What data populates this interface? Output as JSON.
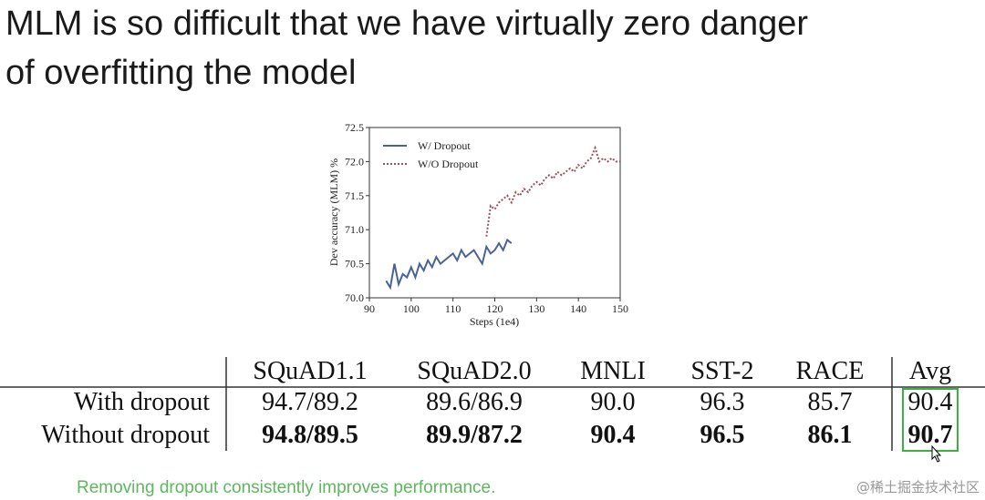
{
  "title": [
    "MLM is so difficult that we have virtually zero danger",
    "of overfitting the model"
  ],
  "chart_data": {
    "type": "line",
    "xlabel": "Steps (1e4)",
    "ylabel": "Dev accuracy (MLM) %",
    "xlim": [
      90,
      150
    ],
    "xticks": [
      90,
      100,
      110,
      120,
      130,
      140,
      150
    ],
    "ylim": [
      70,
      72.5
    ],
    "yticks": [
      {
        "value": 70,
        "label": "70.0"
      },
      70.5,
      {
        "value": 71,
        "label": "71.0"
      },
      71.5,
      {
        "value": 72,
        "label": "72.0"
      },
      72.5
    ],
    "legend": "upper left",
    "series": [
      {
        "name": "W/ Dropout",
        "color": "#4a6397",
        "style": "solid",
        "x": [
          94,
          95,
          96,
          97,
          98,
          99,
          100,
          101,
          102,
          103,
          104,
          105,
          106,
          107,
          108,
          109,
          110,
          111,
          112,
          113,
          114,
          115,
          116,
          117,
          118,
          119,
          120,
          121,
          122,
          123,
          124
        ],
        "values": [
          70.25,
          70.15,
          70.5,
          70.2,
          70.35,
          70.3,
          70.45,
          70.3,
          70.5,
          70.4,
          70.55,
          70.45,
          70.6,
          70.5,
          70.55,
          70.6,
          70.65,
          70.55,
          70.7,
          70.6,
          70.65,
          70.7,
          70.6,
          70.5,
          70.75,
          70.65,
          70.7,
          70.8,
          70.7,
          70.85,
          70.8
        ]
      },
      {
        "name": "W/O Dropout",
        "color": "#a0525a",
        "style": "dotted",
        "x": [
          118,
          119,
          120,
          121,
          122,
          123,
          124,
          125,
          126,
          127,
          128,
          129,
          130,
          131,
          132,
          133,
          134,
          135,
          136,
          137,
          138,
          139,
          140,
          141,
          142,
          143,
          144,
          145,
          146,
          147,
          148,
          149,
          150
        ],
        "values": [
          70.9,
          71.35,
          71.3,
          71.4,
          71.45,
          71.5,
          71.4,
          71.55,
          71.5,
          71.6,
          71.55,
          71.65,
          71.7,
          71.65,
          71.75,
          71.8,
          71.75,
          71.85,
          71.8,
          71.85,
          71.9,
          71.85,
          71.95,
          71.9,
          72.0,
          72.05,
          72.2,
          72.0,
          72.05,
          72.0,
          72.05,
          72.0,
          72.0
        ]
      }
    ]
  },
  "table": {
    "header": [
      "SQuAD1.1",
      "SQuAD2.0",
      "MNLI",
      "SST-2",
      "RACE",
      "Avg"
    ],
    "rows": [
      [
        "With dropout",
        "94.7/89.2",
        "89.6/86.9",
        "90.0",
        "96.3",
        "85.7",
        "90.4"
      ],
      [
        "Without dropout",
        "94.8/89.5",
        "89.9/87.2",
        "90.4",
        "96.5",
        "86.1",
        "90.7"
      ]
    ]
  },
  "caption": "Removing dropout consistently improves performance.",
  "watermark": "@稀土掘金技术社区"
}
